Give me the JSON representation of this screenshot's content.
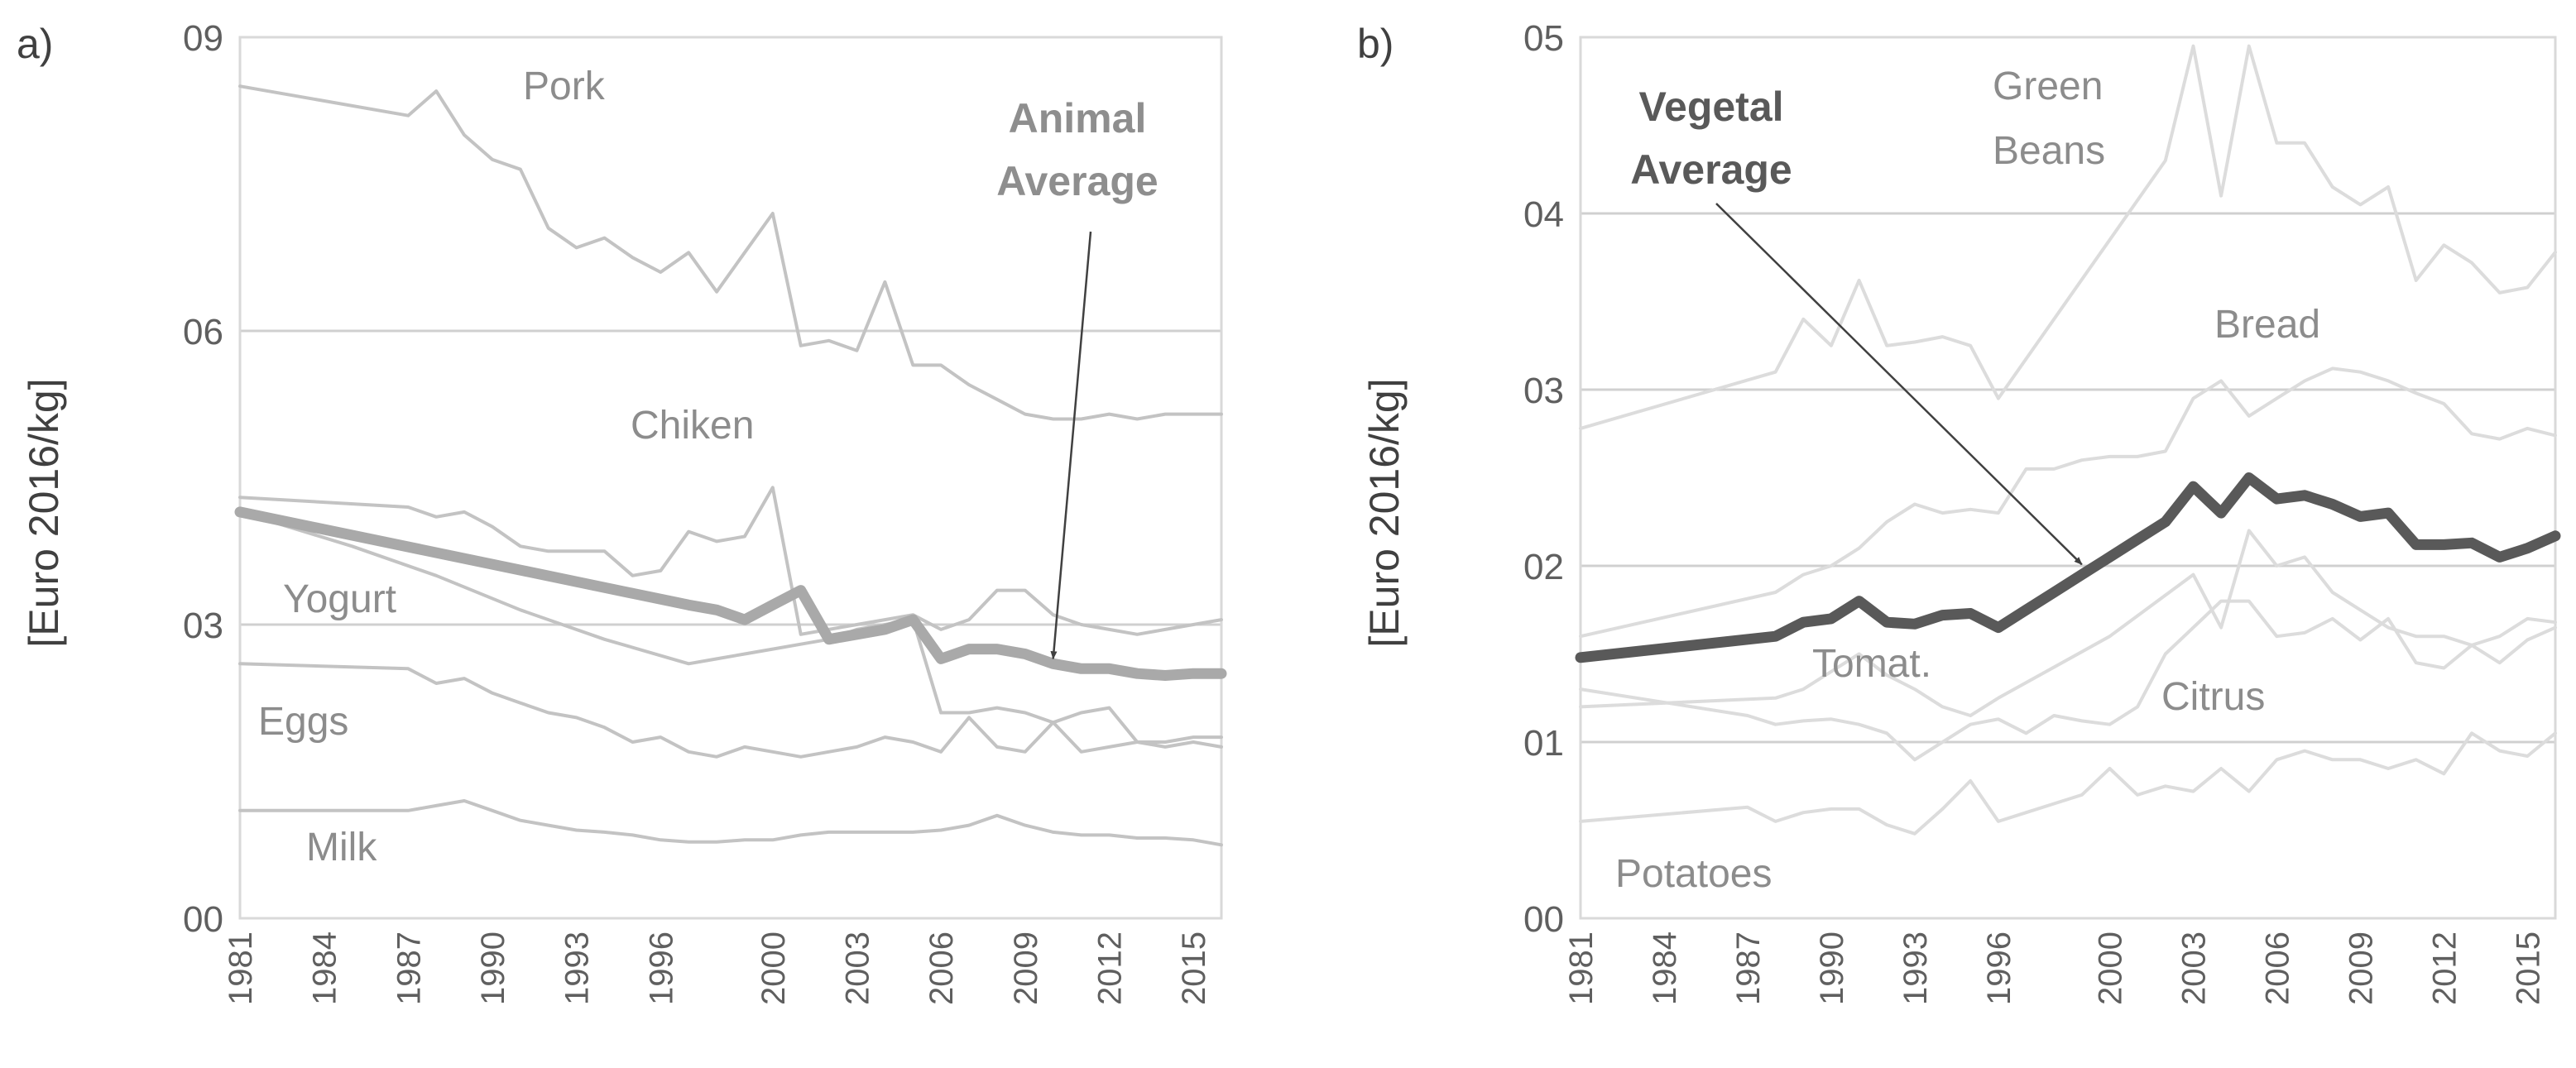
{
  "chart_data": [
    {
      "type": "line",
      "panel": "a)",
      "ylabel": "[Euro 2016/kg]",
      "xlabel": "",
      "ylim": [
        0,
        9
      ],
      "yticks": [
        0,
        3,
        6,
        9
      ],
      "ytick_labels": [
        "00",
        "03",
        "06",
        "09"
      ],
      "xlim": [
        1981,
        2016
      ],
      "xticks": [
        1981,
        1984,
        1987,
        1990,
        1993,
        1996,
        2000,
        2003,
        2006,
        2009,
        2012,
        2015
      ],
      "xtick_labels": [
        "1981",
        "1984",
        "1987",
        "1990",
        "1993",
        "1996",
        "2000",
        "2003",
        "2006",
        "2009",
        "2012",
        "2015"
      ],
      "grid": "horizontal",
      "series": [
        {
          "name": "Pork",
          "label": "Pork",
          "color": "#c3c3c3",
          "x": [
            1981,
            1987,
            1988,
            1989,
            1990,
            1991,
            1992,
            1993,
            1994,
            1995,
            1996,
            1997,
            1998,
            1999,
            2000,
            2001,
            2002,
            2003,
            2004,
            2005,
            2006,
            2007,
            2008,
            2009,
            2010,
            2011,
            2012,
            2013,
            2014,
            2015,
            2016
          ],
          "values": [
            8.5,
            8.2,
            8.45,
            8.0,
            7.75,
            7.65,
            7.05,
            6.85,
            6.95,
            6.75,
            6.6,
            6.8,
            6.4,
            6.8,
            7.2,
            5.85,
            5.9,
            5.8,
            6.5,
            5.65,
            5.65,
            5.45,
            5.3,
            5.15,
            5.1,
            5.1,
            5.15,
            5.1,
            5.15,
            5.15,
            5.15
          ]
        },
        {
          "name": "Chiken",
          "label": "Chiken",
          "color": "#c3c3c3",
          "x": [
            1981,
            1987,
            1988,
            1989,
            1990,
            1991,
            1992,
            1993,
            1994,
            1995,
            1996,
            1997,
            1998,
            1999,
            2000,
            2001,
            2002,
            2003,
            2004,
            2005,
            2006,
            2007,
            2008,
            2009,
            2010,
            2011,
            2012,
            2013,
            2014,
            2015,
            2016
          ],
          "values": [
            4.3,
            4.2,
            4.1,
            4.15,
            4.0,
            3.8,
            3.75,
            3.75,
            3.75,
            3.5,
            3.55,
            3.95,
            3.85,
            3.9,
            4.4,
            2.9,
            2.95,
            3.0,
            3.05,
            3.1,
            2.95,
            3.05,
            3.35,
            3.35,
            3.1,
            3.0,
            2.95,
            2.9,
            2.95,
            3.0,
            3.05
          ]
        },
        {
          "name": "Yogurt",
          "label": "Yogurt",
          "color": "#c3c3c3",
          "x": [
            1981,
            1985,
            1988,
            1991,
            1994,
            1997,
            1998,
            1999,
            2000,
            2001,
            2002,
            2003,
            2004,
            2005,
            2006,
            2007,
            2008,
            2009,
            2010,
            2011,
            2012,
            2013,
            2014,
            2015,
            2016
          ],
          "values": [
            4.15,
            3.8,
            3.5,
            3.15,
            2.85,
            2.6,
            2.65,
            2.7,
            2.75,
            2.8,
            2.85,
            2.95,
            3.0,
            3.05,
            2.1,
            2.1,
            2.15,
            2.1,
            2.0,
            2.1,
            2.15,
            1.8,
            1.75,
            1.8,
            1.75
          ]
        },
        {
          "name": "Eggs",
          "label": "Eggs",
          "color": "#c3c3c3",
          "x": [
            1981,
            1987,
            1988,
            1989,
            1990,
            1991,
            1992,
            1993,
            1994,
            1995,
            1996,
            1997,
            1998,
            1999,
            2000,
            2001,
            2002,
            2003,
            2004,
            2005,
            2006,
            2007,
            2008,
            2009,
            2010,
            2011,
            2012,
            2013,
            2014,
            2015,
            2016
          ],
          "values": [
            2.6,
            2.55,
            2.4,
            2.45,
            2.3,
            2.2,
            2.1,
            2.05,
            1.95,
            1.8,
            1.85,
            1.7,
            1.65,
            1.75,
            1.7,
            1.65,
            1.7,
            1.75,
            1.85,
            1.8,
            1.7,
            2.05,
            1.75,
            1.7,
            2.0,
            1.7,
            1.75,
            1.8,
            1.8,
            1.85,
            1.85
          ]
        },
        {
          "name": "Milk",
          "label": "Milk",
          "color": "#c3c3c3",
          "x": [
            1981,
            1987,
            1988,
            1989,
            1990,
            1991,
            1992,
            1993,
            1994,
            1995,
            1996,
            1997,
            1998,
            1999,
            2000,
            2001,
            2002,
            2003,
            2004,
            2005,
            2006,
            2007,
            2008,
            2009,
            2010,
            2011,
            2012,
            2013,
            2014,
            2015,
            2016
          ],
          "values": [
            1.1,
            1.1,
            1.15,
            1.2,
            1.1,
            1.0,
            0.95,
            0.9,
            0.88,
            0.85,
            0.8,
            0.78,
            0.78,
            0.8,
            0.8,
            0.85,
            0.88,
            0.88,
            0.88,
            0.88,
            0.9,
            0.95,
            1.05,
            0.95,
            0.88,
            0.85,
            0.85,
            0.82,
            0.82,
            0.8,
            0.75
          ]
        },
        {
          "name": "Animal Average",
          "label": "Animal Average",
          "color": "#a9a9a9",
          "emphasis": true,
          "x": [
            1981,
            1997,
            1998,
            1999,
            2000,
            2001,
            2002,
            2003,
            2004,
            2005,
            2006,
            2007,
            2008,
            2009,
            2010,
            2011,
            2012,
            2013,
            2014,
            2015,
            2016
          ],
          "values": [
            4.15,
            3.2,
            3.15,
            3.05,
            3.2,
            3.35,
            2.85,
            2.9,
            2.95,
            3.05,
            2.65,
            2.75,
            2.75,
            2.7,
            2.6,
            2.55,
            2.55,
            2.5,
            2.48,
            2.5,
            2.5
          ]
        }
      ],
      "annotations": [
        {
          "text_lines": [
            "Animal",
            "Average"
          ],
          "points_to": {
            "x": 2010,
            "y": 2.6
          }
        }
      ]
    },
    {
      "type": "line",
      "panel": "b)",
      "ylabel": "[Euro 2016/kg]",
      "xlabel": "",
      "ylim": [
        0,
        5
      ],
      "yticks": [
        0,
        1,
        2,
        3,
        4,
        5
      ],
      "ytick_labels": [
        "00",
        "01",
        "02",
        "03",
        "04",
        "05"
      ],
      "xlim": [
        1981,
        2016
      ],
      "xticks": [
        1981,
        1984,
        1987,
        1990,
        1993,
        1996,
        2000,
        2003,
        2006,
        2009,
        2012,
        2015
      ],
      "xtick_labels": [
        "1981",
        "1984",
        "1987",
        "1990",
        "1993",
        "1996",
        "2000",
        "2003",
        "2006",
        "2009",
        "2012",
        "2015"
      ],
      "grid": "horizontal",
      "series": [
        {
          "name": "Green Beans",
          "label_lines": [
            "Green",
            "Beans"
          ],
          "color": "#dcdcdc",
          "x": [
            1981,
            1988,
            1989,
            1990,
            1991,
            1992,
            1993,
            1994,
            1995,
            1996,
            2002,
            2003,
            2004,
            2005,
            2006,
            2007,
            2008,
            2009,
            2010,
            2011,
            2012,
            2013,
            2014,
            2015,
            2016
          ],
          "values": [
            2.78,
            3.1,
            3.4,
            3.25,
            3.62,
            3.25,
            3.27,
            3.3,
            3.25,
            2.95,
            4.3,
            4.95,
            4.1,
            4.95,
            4.4,
            4.4,
            4.15,
            4.05,
            4.15,
            3.62,
            3.82,
            3.72,
            3.55,
            3.58,
            3.78
          ]
        },
        {
          "name": "Bread",
          "label": "Bread",
          "color": "#dcdcdc",
          "x": [
            1981,
            1988,
            1989,
            1990,
            1991,
            1992,
            1993,
            1994,
            1995,
            1996,
            1997,
            1998,
            1999,
            2000,
            2001,
            2002,
            2003,
            2004,
            2005,
            2006,
            2007,
            2008,
            2009,
            2010,
            2011,
            2012,
            2013,
            2014,
            2015,
            2016
          ],
          "values": [
            1.6,
            1.85,
            1.95,
            2.0,
            2.1,
            2.25,
            2.35,
            2.3,
            2.32,
            2.3,
            2.55,
            2.55,
            2.6,
            2.62,
            2.62,
            2.65,
            2.95,
            3.05,
            2.85,
            2.95,
            3.05,
            3.12,
            3.1,
            3.05,
            2.98,
            2.92,
            2.75,
            2.72,
            2.78,
            2.74
          ]
        },
        {
          "name": "Tomat.",
          "label": "Tomat.",
          "color": "#dcdcdc",
          "x": [
            1981,
            1988,
            1989,
            1990,
            1991,
            1992,
            1993,
            1994,
            1995,
            1996,
            2000,
            2003,
            2004,
            2005,
            2006,
            2007,
            2008,
            2009,
            2010,
            2011,
            2012,
            2013,
            2014,
            2015,
            2016
          ],
          "values": [
            1.2,
            1.25,
            1.3,
            1.4,
            1.5,
            1.38,
            1.3,
            1.2,
            1.15,
            1.25,
            1.6,
            1.95,
            1.65,
            2.2,
            2.0,
            2.05,
            1.85,
            1.75,
            1.65,
            1.6,
            1.6,
            1.55,
            1.6,
            1.7,
            1.68
          ]
        },
        {
          "name": "Citrus",
          "label": "Citrus",
          "color": "#dcdcdc",
          "x": [
            1981,
            1987,
            1988,
            1989,
            1990,
            1991,
            1992,
            1993,
            1994,
            1995,
            1996,
            1997,
            1998,
            1999,
            2000,
            2001,
            2002,
            2003,
            2004,
            2005,
            2006,
            2007,
            2008,
            2009,
            2010,
            2011,
            2012,
            2013,
            2014,
            2015,
            2016
          ],
          "values": [
            1.3,
            1.15,
            1.1,
            1.12,
            1.13,
            1.1,
            1.05,
            0.9,
            1.0,
            1.1,
            1.13,
            1.05,
            1.15,
            1.12,
            1.1,
            1.2,
            1.5,
            1.65,
            1.8,
            1.8,
            1.6,
            1.62,
            1.7,
            1.58,
            1.7,
            1.45,
            1.42,
            1.55,
            1.45,
            1.58,
            1.65
          ]
        },
        {
          "name": "Potatoes",
          "label": "Potatoes",
          "color": "#dcdcdc",
          "x": [
            1981,
            1987,
            1988,
            1989,
            1990,
            1991,
            1992,
            1993,
            1994,
            1995,
            1996,
            1997,
            1998,
            1999,
            2000,
            2001,
            2002,
            2003,
            2004,
            2005,
            2006,
            2007,
            2008,
            2009,
            2010,
            2011,
            2012,
            2013,
            2014,
            2015,
            2016
          ],
          "values": [
            0.55,
            0.63,
            0.55,
            0.6,
            0.62,
            0.62,
            0.53,
            0.48,
            0.62,
            0.78,
            0.55,
            0.6,
            0.65,
            0.7,
            0.85,
            0.7,
            0.75,
            0.72,
            0.85,
            0.72,
            0.9,
            0.95,
            0.9,
            0.9,
            0.85,
            0.9,
            0.82,
            1.05,
            0.95,
            0.92,
            1.05
          ]
        },
        {
          "name": "Vegetal Average",
          "label": "Vegetal Average",
          "color": "#595959",
          "emphasis": true,
          "x": [
            1981,
            1988,
            1989,
            1990,
            1991,
            1992,
            1993,
            1994,
            1995,
            1996,
            1997,
            1998,
            1999,
            2000,
            2001,
            2002,
            2003,
            2004,
            2005,
            2006,
            2007,
            2008,
            2009,
            2010,
            2011,
            2012,
            2013,
            2014,
            2015,
            2016
          ],
          "values": [
            1.48,
            1.6,
            1.68,
            1.7,
            1.8,
            1.68,
            1.67,
            1.72,
            1.73,
            1.65,
            1.75,
            1.85,
            1.95,
            2.05,
            2.15,
            2.25,
            2.45,
            2.3,
            2.5,
            2.38,
            2.4,
            2.35,
            2.28,
            2.3,
            2.12,
            2.12,
            2.13,
            2.05,
            2.1,
            2.17
          ]
        }
      ],
      "annotations": [
        {
          "text_lines": [
            "Vegetal",
            "Average"
          ],
          "points_to": {
            "x": 1999,
            "y": 1.98
          }
        }
      ]
    }
  ]
}
